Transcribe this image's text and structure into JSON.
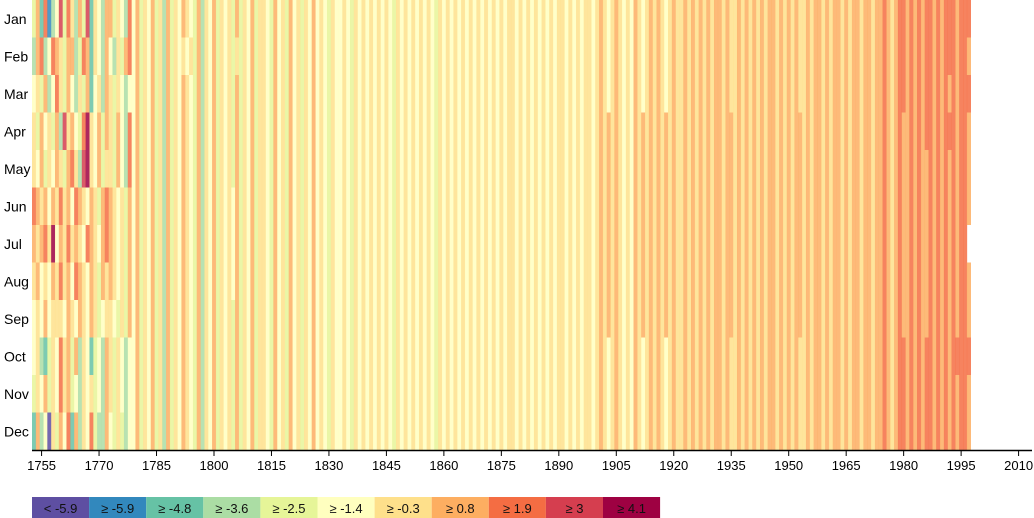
{
  "chart_data": {
    "type": "heatmap",
    "title": "",
    "xlabel": "",
    "ylabel": "",
    "start_year": 1753,
    "xlim": [
      1753,
      2013
    ],
    "x_ticks": [
      "1755",
      "1770",
      "1785",
      "1800",
      "1815",
      "1830",
      "1845",
      "1860",
      "1875",
      "1890",
      "1905",
      "1920",
      "1935",
      "1950",
      "1965",
      "1980",
      "1995",
      "2010"
    ],
    "months": [
      "Jan",
      "Feb",
      "Mar",
      "Apr",
      "May",
      "Jun",
      "Jul",
      "Aug",
      "Sep",
      "Oct",
      "Nov",
      "Dec"
    ],
    "legend": {
      "placement": "bottom-left",
      "labels": [
        "< -5.9",
        "≥ -5.9",
        "≥ -4.8",
        "≥ -3.6",
        "≥ -2.5",
        "≥ -1.4",
        "≥ -0.3",
        "≥ 0.8",
        "≥ 1.9",
        "≥ 3",
        "≥ 4.1"
      ],
      "thresholds": [
        -5.9,
        -4.8,
        -3.6,
        -2.5,
        -1.4,
        -0.3,
        0.8,
        1.9,
        3,
        4.1
      ],
      "colors": [
        "#5e4fa2",
        "#3288bd",
        "#66c2a5",
        "#abdda4",
        "#e6f598",
        "#ffffbf",
        "#fee08b",
        "#fdae61",
        "#f46d43",
        "#d53e4f",
        "#9e0142"
      ]
    },
    "bin_encoding": "each character is the legend bin index (0-9, a=10) for consecutive years from start_year",
    "bins_by_month": [
      "47281359486374926537746538574657463746576547365746564746574665475647564657565465565465656565654656565656546565656565656565656656565656565665656566567656765657656767656766767676767767667676767677676767667677676776767767767787678878787887878887888",
      "37835876477348726537536478574657463746565647365746564646574665475647564657565465565465656565654656565656546565656565656565656656565656565665656566567656765657656767656766767676767767667676767677676767667677676776767767767787678878787887878887887",
      "56473586475364725637646535574657463746576547365746564746574665475647564657565465565465656565654656565656546565656565656565656656565656565665656566567656765657656767656766767676767767667676767677676767667677676776767767767787678878787887878787888",
      "64756473967548a65747647538574657463746576547365746564746574665475647564657565465565465656565654656565656546565656565656565656656565656565665656566567676765657676767676766767676767767767676767677676767767677676776767767767787678778787887878887887",
      "65746576478639a65746647538574657463746576547365746564746574665475647564657565465565465656565654656565656546565656565656565656656565656565665656566567676765657676767676766767676767767767676767677676767767677676776767767767787678778787787878787887",
      "87675768675876576478765647574657463746576547365746565746574665475647564657565465565465656565654656565656546565656565656565656656565656565665656566567676765657676767676766767676767767767676767677676767767677676776767767767787678778787787878787887",
      "76786a5768676587657876564757465746374657654736574656574657466547564756465756546556546565656565465656565654656565656565656565665656565656566565656656767676565767676767676676767676776776767676767767676776767767677676776776778767877878778787878788",
      "67565768675876576476765647574657463746576547365746565746574665475647564657565465565465656565654656565656546565656565656565656656565656565665656566567676765657676767676766767676767767767676767677676767767677676776767767767787678778787787878787887",
      "56575666576576576456654647574657463746576547365746564746574665475647564657565465565465656565654656565656546565656565656565656656565656565665656566567676765657676767676766767676767767767676767677676767767677676776767767767787678778787787878787887",
      "56324658674736524537646535574657463746576547365746564746574665475647564657565465565465656565654656565656546565656565656565656656565656565665656566567656765657656767656766767676767767667676767677676767667677676776767767767787678878787887878788888",
      "46574658674536564537646535574657463746576547365746564746574665475647564657565465565465656565654656565656546565656565656565656656565656565665656566567656765657656767656766767676767767667676767677676767667677676776767767767787678878787887878787887",
      "27350647582736584337546435574657463746576547365746564746574665475647564657565465565465656565654656565656546565656565656565656656565656565665656566567656765657656767656766767676767767667676767677676767667677676776767767767787678878787887878787887"
    ]
  }
}
